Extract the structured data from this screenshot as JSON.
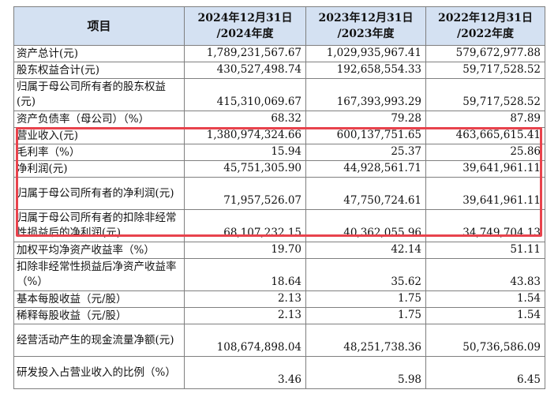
{
  "header": {
    "item_label": "项目",
    "col1": [
      "2024年12月31日",
      "/2024年度"
    ],
    "col2": [
      "2023年12月31日",
      "/2023年度"
    ],
    "col3": [
      "2022年12月31日",
      "/2022年度"
    ]
  },
  "rows": [
    {
      "label": "资产总计(元)",
      "v1": "1,789,231,567.67",
      "v2": "1,029,935,967.41",
      "v3": "579,672,977.88"
    },
    {
      "label": "股东权益合计(元)",
      "v1": "430,527,498.74",
      "v2": "192,658,554.33",
      "v3": "59,717,528.52"
    },
    {
      "label": "归属于母公司所有者的股东权益(元)",
      "v1": "415,310,069.67",
      "v2": "167,393,993.29",
      "v3": "59,717,528.52"
    },
    {
      "label": "资产负债率（母公司）（%）",
      "v1": "68.32",
      "v2": "79.28",
      "v3": "87.89"
    },
    {
      "label": "营业收入(元)",
      "v1": "1,380,974,324.66",
      "v2": "600,137,751.65",
      "v3": "463,665,615.41"
    },
    {
      "label": "毛利率（%）",
      "v1": "15.94",
      "v2": "25.37",
      "v3": "25.86"
    },
    {
      "label": "净利润(元)",
      "v1": "45,751,305.90",
      "v2": "44,928,561.71",
      "v3": "39,641,961.11"
    },
    {
      "label": "归属于母公司所有者的净利润(元)",
      "v1": "71,957,526.07",
      "v2": "47,750,724.61",
      "v3": "39,641,961.11"
    },
    {
      "label": "归属于母公司所有者的扣除非经常性损益后的净利润(元)",
      "v1": "68,107,232.15",
      "v2": "40,362,055.96",
      "v3": "34,749,704.13"
    },
    {
      "label": "加权平均净资产收益率（%）",
      "v1": "19.70",
      "v2": "42.14",
      "v3": "51.11"
    },
    {
      "label": "扣除非经常性损益后净资产收益率（%）",
      "v1": "18.64",
      "v2": "35.62",
      "v3": "43.83"
    },
    {
      "label": "基本每股收益（元/股）",
      "v1": "2.13",
      "v2": "1.75",
      "v3": "1.54"
    },
    {
      "label": "稀释每股收益（元/股）",
      "v1": "2.13",
      "v2": "1.75",
      "v3": "1.54"
    },
    {
      "label": "经营活动产生的现金流量净额(元)",
      "v1": "108,674,898.04",
      "v2": "48,251,738.36",
      "v3": "50,736,586.09"
    },
    {
      "label": "研发投入占营业收入的比例（%）",
      "v1": "3.46",
      "v2": "5.98",
      "v3": "6.45"
    }
  ],
  "colors": {
    "header_bg": "#d4e1f2",
    "highlight_border": "#e8434d",
    "grid": "#7f7f7f"
  }
}
